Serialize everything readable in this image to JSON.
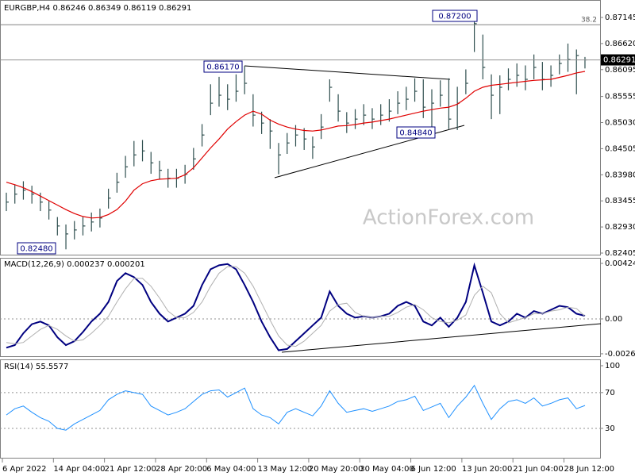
{
  "chart_data": [
    {
      "type": "ohlc",
      "title": "EURGBP,H4  0.86246 0.86349 0.86119 0.86291",
      "watermark": "ActionForex.com",
      "color": "#2f4f4f",
      "categories": [
        "6 Apr 2022",
        null,
        null,
        null,
        null,
        null,
        "14 Apr 04:00",
        null,
        null,
        null,
        null,
        null,
        "21 Apr 12:00",
        null,
        null,
        null,
        null,
        null,
        "28 Apr 20:00",
        null,
        null,
        null,
        null,
        null,
        "6 May 04:00",
        null,
        null,
        null,
        null,
        null,
        "13 May 12:00",
        null,
        null,
        null,
        null,
        null,
        "20 May 20:00",
        null,
        null,
        null,
        null,
        null,
        "30 May 04:00",
        null,
        null,
        null,
        null,
        null,
        "6 Jun 12:00",
        null,
        null,
        null,
        null,
        null,
        "13 Jun 20:00",
        null,
        null,
        null,
        null,
        null,
        "21 Jun 04:00",
        null,
        null,
        null,
        null,
        null,
        "28 Jun 12:00",
        null,
        null
      ],
      "high": [
        0.8362,
        0.8378,
        0.8385,
        0.8376,
        0.8362,
        0.8345,
        0.8313,
        0.8298,
        0.8305,
        0.8313,
        0.8322,
        0.833,
        0.837,
        0.8402,
        0.8436,
        0.8466,
        0.8468,
        0.8444,
        0.8426,
        0.841,
        0.841,
        0.8418,
        0.8452,
        0.85,
        0.858,
        0.8595,
        0.858,
        0.86,
        0.8617,
        0.856,
        0.8525,
        0.851,
        0.8462,
        0.8482,
        0.8498,
        0.8492,
        0.8475,
        0.852,
        0.859,
        0.856,
        0.8524,
        0.853,
        0.854,
        0.8532,
        0.854,
        0.855,
        0.8566,
        0.8575,
        0.8592,
        0.859,
        0.857,
        0.8588,
        0.8592,
        0.8575,
        0.861,
        0.872,
        0.868,
        0.86,
        0.8598,
        0.8612,
        0.8622,
        0.8618,
        0.864,
        0.8625,
        0.8618,
        0.864,
        0.8662,
        0.865,
        0.86349
      ],
      "low": [
        0.8325,
        0.834,
        0.8348,
        0.834,
        0.8325,
        0.8308,
        0.8276,
        0.8248,
        0.8268,
        0.8276,
        0.8284,
        0.8292,
        0.833,
        0.8362,
        0.8392,
        0.8415,
        0.8425,
        0.84,
        0.8388,
        0.8372,
        0.8372,
        0.838,
        0.8408,
        0.8455,
        0.8518,
        0.8535,
        0.8528,
        0.8545,
        0.856,
        0.8495,
        0.848,
        0.845,
        0.8399,
        0.844,
        0.8455,
        0.8448,
        0.843,
        0.847,
        0.8545,
        0.8505,
        0.8482,
        0.849,
        0.8498,
        0.849,
        0.8498,
        0.8505,
        0.852,
        0.8528,
        0.8545,
        0.8512,
        0.8484,
        0.8535,
        0.849,
        0.8488,
        0.856,
        0.8645,
        0.859,
        0.851,
        0.852,
        0.8568,
        0.8575,
        0.8568,
        0.859,
        0.8568,
        0.8575,
        0.86,
        0.8605,
        0.856,
        0.86119
      ],
      "close": [
        0.8343,
        0.8359,
        0.8367,
        0.8359,
        0.8343,
        0.8327,
        0.8295,
        0.8279,
        0.8287,
        0.8295,
        0.8303,
        0.8311,
        0.8351,
        0.8383,
        0.8414,
        0.8438,
        0.8446,
        0.8422,
        0.8407,
        0.8391,
        0.8391,
        0.8399,
        0.843,
        0.8478,
        0.8542,
        0.8558,
        0.855,
        0.8566,
        0.8582,
        0.8518,
        0.8502,
        0.8486,
        0.8438,
        0.8462,
        0.8478,
        0.847,
        0.8454,
        0.8494,
        0.8574,
        0.8526,
        0.8502,
        0.851,
        0.8518,
        0.851,
        0.8518,
        0.8526,
        0.8542,
        0.855,
        0.8566,
        0.8534,
        0.8542,
        0.8558,
        0.851,
        0.8542,
        0.8582,
        0.8702,
        0.8614,
        0.8558,
        0.8574,
        0.859,
        0.8598,
        0.859,
        0.8614,
        0.859,
        0.8598,
        0.8622,
        0.863,
        0.8638,
        0.86291
      ],
      "series": [
        {
          "color": "#e00000",
          "values": [
            0.8383,
            0.8378,
            0.8372,
            0.8364,
            0.8355,
            0.8346,
            0.8337,
            0.8328,
            0.832,
            0.8314,
            0.8311,
            0.8312,
            0.8318,
            0.8328,
            0.8345,
            0.8367,
            0.838,
            0.8386,
            0.8389,
            0.839,
            0.8391,
            0.8398,
            0.8412,
            0.8432,
            0.8452,
            0.847,
            0.849,
            0.8505,
            0.8518,
            0.8526,
            0.852,
            0.8508,
            0.85,
            0.8494,
            0.849,
            0.8487,
            0.8486,
            0.8488,
            0.8492,
            0.8496,
            0.8497,
            0.8499,
            0.8502,
            0.8504,
            0.8507,
            0.851,
            0.8514,
            0.8518,
            0.8522,
            0.8526,
            0.8529,
            0.8532,
            0.8534,
            0.854,
            0.8552,
            0.8566,
            0.8574,
            0.8578,
            0.858,
            0.8582,
            0.8584,
            0.8586,
            0.8588,
            0.8589,
            0.859,
            0.8594,
            0.8598,
            0.8603,
            0.8606
          ]
        }
      ],
      "ylim": [
        0.82357,
        0.87496
      ],
      "yticks": [
        0.87145,
        {
          "value": 0.8662,
          "label": "0.86620"
        },
        0.86095,
        0.85555,
        {
          "value": 0.8503,
          "label": "0.85030"
        },
        0.84505,
        {
          "value": 0.8398,
          "label": "0.83980"
        },
        0.83455,
        {
          "value": 0.8293,
          "label": "0.82930"
        },
        0.82405
      ],
      "annotations": [
        "0.87200",
        "0.86170",
        "0.84840",
        "0.82480"
      ],
      "fib": {
        "value": 0.87,
        "label": "38.2"
      }
    },
    {
      "type": "line",
      "title": "MACD(12,26,9) 0.000237 0.000201",
      "series": [
        {
          "color": "#000080",
          "values": [
            -0.0022,
            -0.002,
            -0.0011,
            -0.0004,
            -0.0002,
            -0.0005,
            -0.0014,
            -0.002,
            -0.0017,
            -0.001,
            -0.0002,
            0.0004,
            0.0013,
            0.0029,
            0.0035,
            0.0032,
            0.0026,
            0.0013,
            0.0004,
            -0.0002,
            0.0001,
            0.0004,
            0.001,
            0.0026,
            0.0038,
            0.0041,
            0.0042,
            0.0038,
            0.0026,
            0.0013,
            -0.0002,
            -0.0014,
            -0.0024,
            -0.0023,
            -0.0017,
            -0.0011,
            -0.0005,
            0.0001,
            0.0021,
            0.001,
            0.0004,
            0.0001,
            0.0002,
            0.0001,
            0.0002,
            0.0004,
            0.001,
            0.0013,
            0.001,
            -0.0002,
            -0.0005,
            0.0001,
            -0.0006,
            0.0001,
            0.0013,
            0.0041,
            0.002,
            -0.0002,
            -0.0005,
            -0.0002,
            0.0004,
            0.0001,
            0.0006,
            0.0004,
            0.0007,
            0.001,
            0.0009,
            0.0004,
            0.000237
          ]
        },
        {
          "color": "#b0b0b0",
          "values": [
            -0.0018,
            -0.0019,
            -0.0018,
            -0.0013,
            -0.0008,
            -0.0005,
            -0.0008,
            -0.0013,
            -0.0017,
            -0.0016,
            -0.0011,
            -0.0005,
            0.0002,
            0.0013,
            0.0023,
            0.0031,
            0.0031,
            0.0025,
            0.0016,
            0.0006,
            0.0001,
            0.0001,
            0.0005,
            0.0013,
            0.0025,
            0.0035,
            0.004,
            0.004,
            0.0035,
            0.0025,
            0.0012,
            -0.0001,
            -0.0013,
            -0.002,
            -0.0021,
            -0.0017,
            -0.0011,
            -0.0005,
            0.0006,
            0.0011,
            0.0012,
            0.0005,
            0.0002,
            0.0001,
            0.0002,
            0.0002,
            0.0005,
            0.0009,
            0.0011,
            0.0007,
            0.0001,
            -0.0002,
            -0.0003,
            -0.0001,
            0.0003,
            0.0018,
            0.0025,
            0.002,
            0.0004,
            -0.0003,
            -0.0001,
            0.0001,
            0.0004,
            0.0004,
            0.0006,
            0.0007,
            0.0009,
            0.0008,
            0.000201
          ]
        }
      ],
      "ylim": [
        -0.002913,
        0.004673
      ],
      "yticks": [
        0.004248,
        {
          "value": 0,
          "label": "0.00"
        },
        -0.002667
      ],
      "levels": [
        0
      ]
    },
    {
      "type": "line",
      "title": "RSI(14) 55.5577",
      "series": [
        {
          "color": "#1e90ff",
          "values": [
            45,
            52,
            55,
            48,
            42,
            38,
            30,
            28,
            35,
            40,
            45,
            50,
            62,
            68,
            72,
            70,
            68,
            55,
            50,
            45,
            48,
            52,
            60,
            68,
            72,
            73,
            65,
            70,
            75,
            52,
            45,
            42,
            35,
            48,
            52,
            48,
            44,
            55,
            72,
            58,
            48,
            50,
            52,
            49,
            52,
            55,
            60,
            62,
            66,
            50,
            54,
            58,
            42,
            55,
            65,
            78,
            58,
            40,
            52,
            60,
            62,
            58,
            64,
            55,
            58,
            62,
            64,
            52,
            55.5577
          ]
        }
      ],
      "ylim": [
        -3.7,
        107.1
      ],
      "yticks": [
        100,
        70,
        30
      ],
      "levels": [
        70,
        30
      ]
    }
  ]
}
